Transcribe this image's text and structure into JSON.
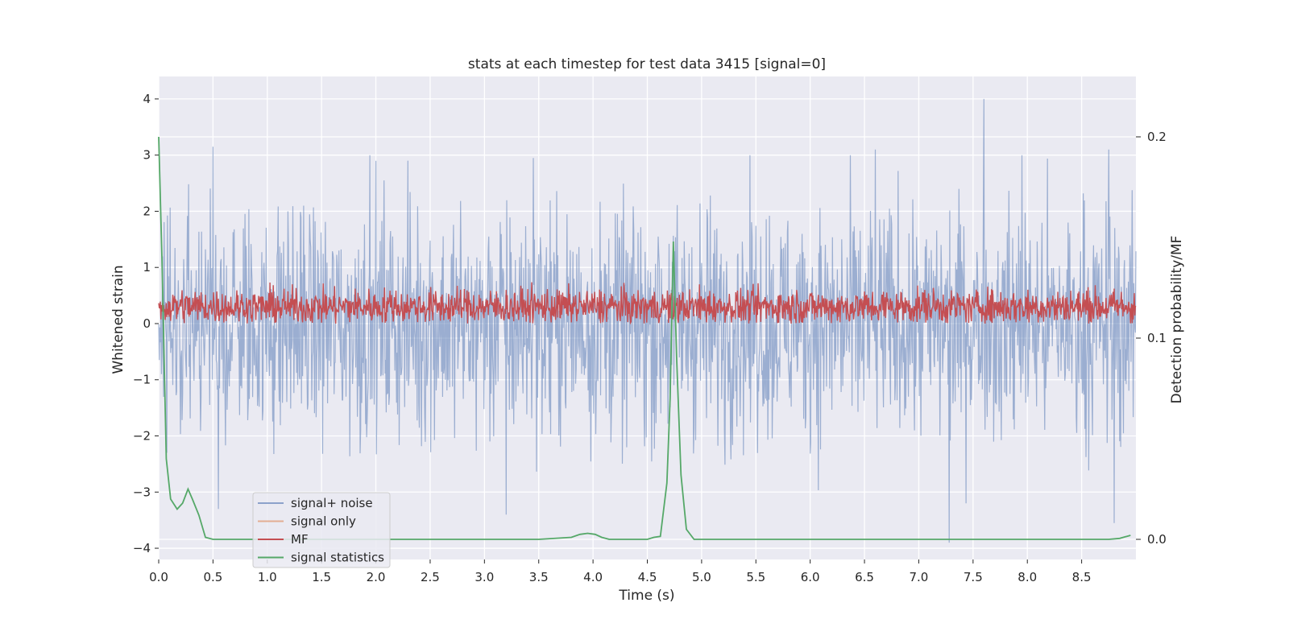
{
  "chart_data": {
    "type": "line",
    "title": "stats at each timestep for test data 3415 [signal=0]",
    "xlabel": "Time (s)",
    "ylabel": "Whitened strain",
    "y2label": "Detection probability/MF",
    "xlim": [
      0.0,
      9.0
    ],
    "ylim": [
      -4.2,
      4.4
    ],
    "y2lim": [
      -0.01,
      0.23
    ],
    "x_ticks": [
      0.0,
      0.5,
      1.0,
      1.5,
      2.0,
      2.5,
      3.0,
      3.5,
      4.0,
      4.5,
      5.0,
      5.5,
      6.0,
      6.5,
      7.0,
      7.5,
      8.0,
      8.5
    ],
    "x_tick_labels": [
      "0.0",
      "0.5",
      "1.0",
      "1.5",
      "2.0",
      "2.5",
      "3.0",
      "3.5",
      "4.0",
      "4.5",
      "5.0",
      "5.5",
      "6.0",
      "6.5",
      "7.0",
      "7.5",
      "8.0",
      "8.5"
    ],
    "y_ticks": [
      4,
      3,
      2,
      1,
      0,
      -1,
      -2,
      -3,
      -4
    ],
    "y_tick_labels": [
      "4",
      "3",
      "2",
      "1",
      "0",
      "−1",
      "−2",
      "−3",
      "−4"
    ],
    "y2_ticks": [
      0.2,
      0.1,
      0.0
    ],
    "y2_tick_labels": [
      "0.2",
      "0.1",
      "0.0"
    ],
    "grid": true,
    "legend_position": "lower-left",
    "series": [
      {
        "name": "signal+ noise",
        "color": "#4c72b0",
        "axis": "left",
        "style": "dense noise trace, approx. range -3.9 to 4.0",
        "approx_range": [
          -3.9,
          4.0
        ],
        "peaks": [
          {
            "x": 0.5,
            "y": 3.15
          },
          {
            "x": 2.0,
            "y": 2.9
          },
          {
            "x": 3.45,
            "y": 2.95
          },
          {
            "x": 6.6,
            "y": 3.1
          },
          {
            "x": 7.6,
            "y": 4.0
          },
          {
            "x": 7.95,
            "y": 3.0
          },
          {
            "x": 8.75,
            "y": 3.1
          },
          {
            "x": 7.28,
            "y": -3.9
          },
          {
            "x": 8.8,
            "y": -3.55
          },
          {
            "x": 3.2,
            "y": -3.4
          },
          {
            "x": 0.55,
            "y": -3.3
          }
        ]
      },
      {
        "name": "signal only",
        "color": "#dd8452",
        "axis": "left",
        "values": []
      },
      {
        "name": "MF",
        "color": "#c44e52",
        "axis": "left",
        "style": "dense noise trace, approx. range 0.0 to 0.9",
        "approx_range": [
          0.0,
          0.9
        ]
      },
      {
        "name": "signal statistics",
        "color": "#55a868",
        "axis": "right",
        "x": [
          0.0,
          0.03,
          0.07,
          0.11,
          0.17,
          0.22,
          0.27,
          0.31,
          0.37,
          0.43,
          0.5,
          0.7,
          1.0,
          2.0,
          3.0,
          3.5,
          3.8,
          3.88,
          3.95,
          4.02,
          4.08,
          4.15,
          4.3,
          4.5,
          4.56,
          4.62,
          4.68,
          4.71,
          4.74,
          4.77,
          4.81,
          4.86,
          4.93,
          5.0,
          6.0,
          7.0,
          8.0,
          8.5,
          8.75,
          8.85,
          8.95
        ],
        "y": [
          0.2,
          0.14,
          0.04,
          0.02,
          0.015,
          0.018,
          0.025,
          0.02,
          0.012,
          0.001,
          0.0,
          0.0,
          0.0,
          0.0,
          0.0,
          0.0,
          0.001,
          0.0025,
          0.003,
          0.0025,
          0.001,
          0.0,
          0.0,
          0.0,
          0.001,
          0.0015,
          0.028,
          0.07,
          0.148,
          0.09,
          0.032,
          0.005,
          0.0,
          0.0,
          0.0,
          0.0,
          0.0,
          0.0,
          0.0,
          0.0005,
          0.002
        ]
      }
    ],
    "colors": {
      "axes_bg": "#eaeaf2",
      "grid": "#ffffff",
      "text": "#262626"
    }
  }
}
